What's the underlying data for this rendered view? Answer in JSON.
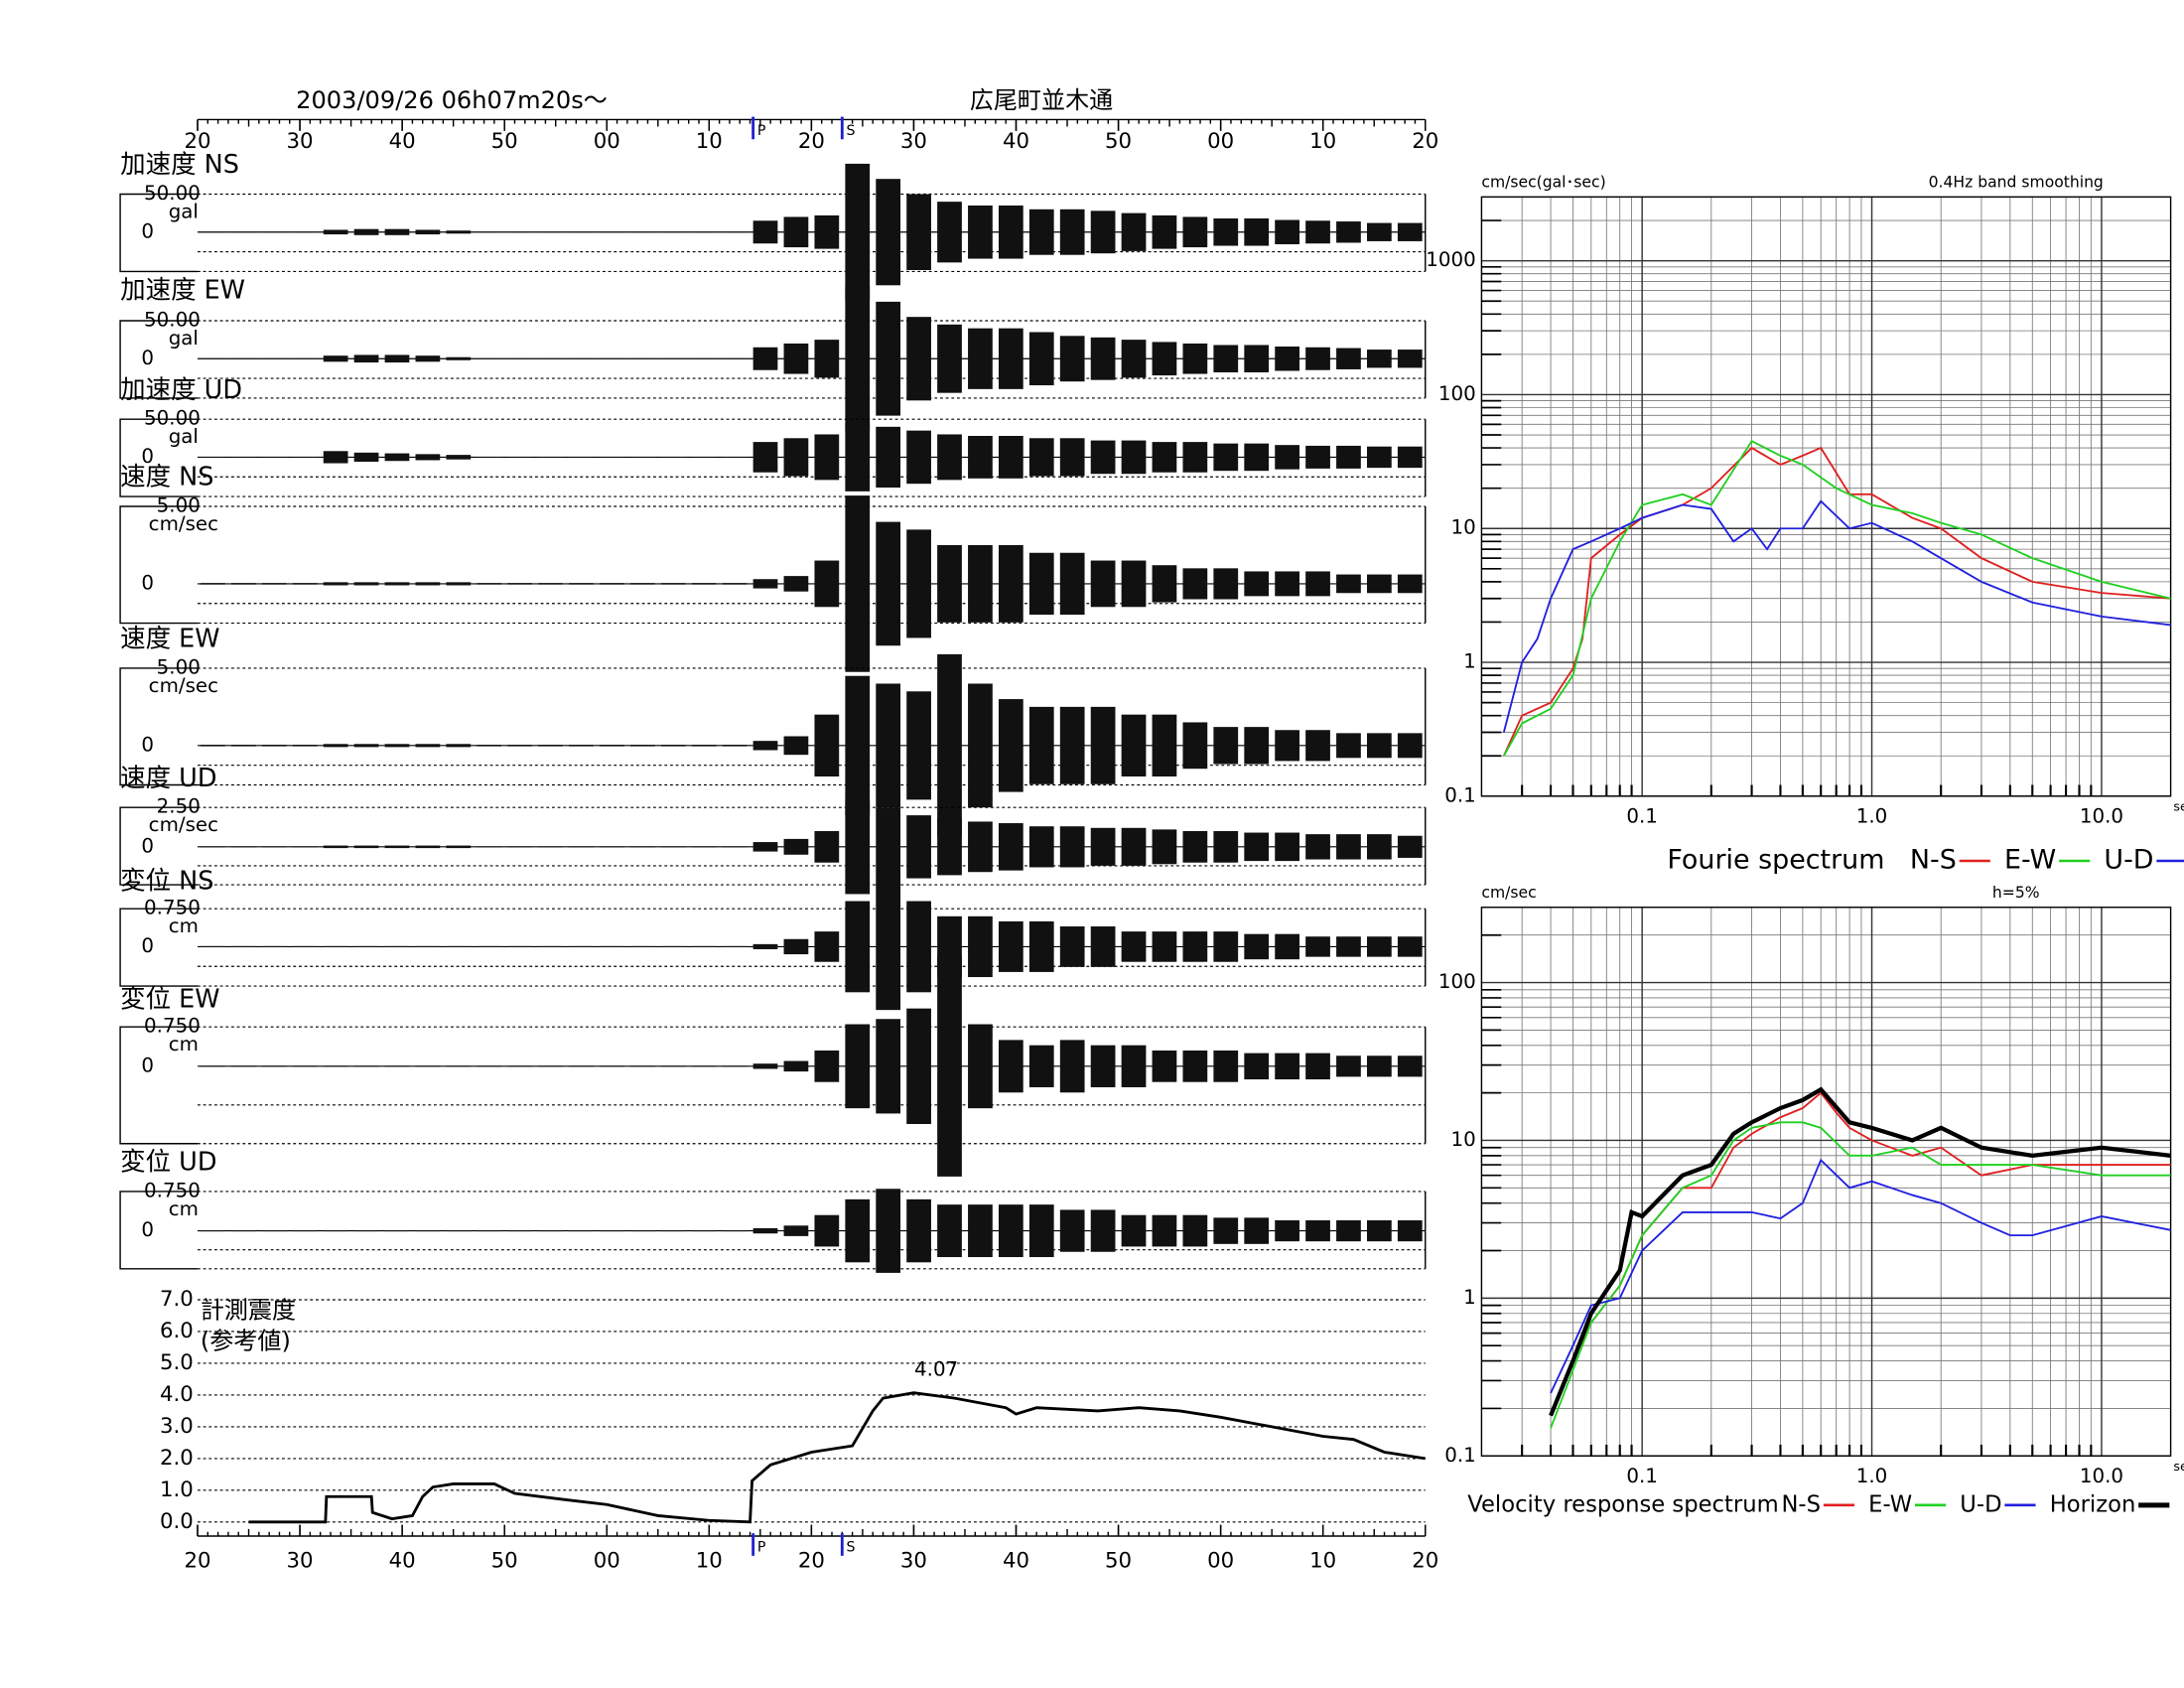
{
  "chart_data": [
    {
      "type": "waveform",
      "title": "2003/09/26  06h07m20s〜",
      "subtitle": "広尾町並木通",
      "x": [
        1.5,
        4.5,
        7.5,
        10.5,
        13.5,
        16.5,
        19.5,
        22.5,
        25.5,
        28.5,
        31.5,
        34.5,
        37.5,
        40.5,
        43.5,
        46.5,
        49.5,
        52.5,
        55.5,
        58.5,
        61.5,
        64.5,
        67.5,
        70.5,
        73.5,
        76.5,
        79.5,
        82.5,
        85.5,
        88.5,
        91.5,
        94.5,
        97.5,
        100.5,
        103.5,
        106.5,
        109.5,
        112.5,
        115.5,
        118.5
      ],
      "xlim": [
        0,
        120
      ],
      "xticks": [
        {
          "value": 0,
          "label": "20"
        },
        {
          "value": 10,
          "label": "30"
        },
        {
          "value": 20,
          "label": "40"
        },
        {
          "value": 30,
          "label": "50"
        },
        {
          "value": 40,
          "label": "00"
        },
        {
          "value": 50,
          "label": "10"
        },
        {
          "value": 60,
          "label": "20"
        },
        {
          "value": 70,
          "label": "30"
        },
        {
          "value": 80,
          "label": "40"
        },
        {
          "value": 90,
          "label": "50"
        },
        {
          "value": 100,
          "label": "00"
        },
        {
          "value": 110,
          "label": "10"
        },
        {
          "value": 120,
          "label": "20"
        }
      ],
      "phases": [
        {
          "label": "P",
          "x": 54.3
        },
        {
          "label": "S",
          "x": 63
        }
      ],
      "panels": [
        {
          "name": "加速度 NS",
          "unit": "gal",
          "yticks": [
            {
              "value": 50,
              "label": "50.00"
            },
            0
          ],
          "values": [
            0.5,
            0.5,
            0.5,
            0.5,
            3,
            4,
            4,
            3,
            2,
            0.5,
            0.5,
            0.5,
            0.5,
            0.5,
            0.5,
            0.5,
            0.5,
            0.5,
            15,
            20,
            22,
            90,
            70,
            50,
            40,
            35,
            35,
            30,
            30,
            28,
            25,
            22,
            20,
            18,
            18,
            16,
            15,
            14,
            12,
            12
          ]
        },
        {
          "name": "加速度 EW",
          "unit": "gal",
          "yticks": [
            {
              "value": 50,
              "label": "50.00"
            },
            0
          ],
          "values": [
            0.5,
            0.5,
            0.5,
            0.5,
            4,
            5,
            5,
            4,
            2,
            0.5,
            0.5,
            0.5,
            0.5,
            0.5,
            0.5,
            0.5,
            0.5,
            0.5,
            15,
            20,
            25,
            95,
            75,
            55,
            45,
            40,
            40,
            35,
            30,
            28,
            25,
            22,
            20,
            18,
            18,
            16,
            15,
            14,
            12,
            12
          ]
        },
        {
          "name": "加速度 UD",
          "unit": "gal",
          "yticks": [
            {
              "value": 50,
              "label": "50.00"
            },
            0
          ],
          "values": [
            0.5,
            0.5,
            0.5,
            0.5,
            8,
            6,
            5,
            4,
            3,
            0.5,
            0.5,
            0.5,
            0.5,
            0.5,
            0.5,
            0.5,
            0.5,
            0.5,
            20,
            25,
            30,
            45,
            40,
            35,
            30,
            28,
            28,
            25,
            25,
            22,
            22,
            20,
            20,
            18,
            18,
            16,
            15,
            15,
            14,
            14
          ]
        },
        {
          "name": "速度 NS",
          "unit": "cm/sec",
          "yticks": [
            {
              "value": 5,
              "label": "5.00"
            },
            0
          ],
          "values": [
            0.05,
            0.05,
            0.05,
            0.05,
            0.1,
            0.1,
            0.1,
            0.1,
            0.1,
            0.05,
            0.05,
            0.05,
            0.05,
            0.05,
            0.05,
            0.05,
            0.05,
            0.05,
            0.3,
            0.5,
            1.5,
            5.7,
            4,
            3.5,
            2.5,
            2.5,
            2.5,
            2,
            2,
            1.5,
            1.5,
            1.2,
            1,
            1,
            0.8,
            0.8,
            0.8,
            0.6,
            0.6,
            0.6
          ]
        },
        {
          "name": "速度 EW",
          "unit": "cm/sec",
          "yticks": [
            {
              "value": 5,
              "label": "5.00"
            },
            0
          ],
          "values": [
            0.05,
            0.05,
            0.05,
            0.05,
            0.1,
            0.1,
            0.1,
            0.1,
            0.1,
            0.05,
            0.05,
            0.05,
            0.05,
            0.05,
            0.05,
            0.05,
            0.05,
            0.05,
            0.3,
            0.6,
            2,
            4.5,
            4,
            3.5,
            5.9,
            4,
            3,
            2.5,
            2.5,
            2.5,
            2,
            2,
            1.5,
            1.2,
            1.2,
            1,
            1,
            0.8,
            0.8,
            0.8
          ]
        },
        {
          "name": "速度 UD",
          "unit": "cm/sec",
          "yticks": [
            {
              "value": 2.5,
              "label": "2.50"
            },
            0
          ],
          "values": [
            0.03,
            0.03,
            0.03,
            0.03,
            0.08,
            0.08,
            0.08,
            0.08,
            0.08,
            0.03,
            0.03,
            0.03,
            0.03,
            0.03,
            0.03,
            0.03,
            0.03,
            0.03,
            0.3,
            0.5,
            1,
            3,
            2.5,
            2,
            1.8,
            1.6,
            1.5,
            1.3,
            1.3,
            1.2,
            1.2,
            1.1,
            1,
            1,
            0.9,
            0.9,
            0.8,
            0.8,
            0.8,
            0.7
          ]
        },
        {
          "name": "変位 NS",
          "unit": "cm",
          "yticks": [
            {
              "value": 0.75,
              "label": "0.750"
            },
            0
          ],
          "values": [
            0.01,
            0.01,
            0.01,
            0.01,
            0.01,
            0.01,
            0.01,
            0.01,
            0.01,
            0.01,
            0.01,
            0.01,
            0.01,
            0.01,
            0.01,
            0.01,
            0.01,
            0.01,
            0.05,
            0.15,
            0.3,
            0.9,
            1.25,
            0.9,
            0.6,
            0.6,
            0.5,
            0.5,
            0.4,
            0.4,
            0.3,
            0.3,
            0.3,
            0.3,
            0.25,
            0.25,
            0.2,
            0.2,
            0.2,
            0.2
          ]
        },
        {
          "name": "変位 EW",
          "unit": "cm",
          "yticks": [
            {
              "value": 0.75,
              "label": "0.750"
            },
            0
          ],
          "values": [
            0.01,
            0.01,
            0.01,
            0.01,
            0.01,
            0.01,
            0.01,
            0.01,
            0.01,
            0.01,
            0.01,
            0.01,
            0.01,
            0.01,
            0.01,
            0.01,
            0.01,
            0.01,
            0.05,
            0.1,
            0.3,
            0.8,
            0.9,
            1.1,
            2.1,
            0.8,
            0.5,
            0.4,
            0.5,
            0.4,
            0.4,
            0.3,
            0.3,
            0.3,
            0.25,
            0.25,
            0.25,
            0.2,
            0.2,
            0.2
          ]
        },
        {
          "name": "変位 UD",
          "unit": "cm",
          "yticks": [
            {
              "value": 0.75,
              "label": "0.750"
            },
            0
          ],
          "values": [
            0.01,
            0.01,
            0.01,
            0.01,
            0.01,
            0.01,
            0.01,
            0.01,
            0.01,
            0.01,
            0.01,
            0.01,
            0.01,
            0.01,
            0.01,
            0.01,
            0.01,
            0.01,
            0.05,
            0.1,
            0.3,
            0.6,
            0.8,
            0.6,
            0.5,
            0.5,
            0.5,
            0.5,
            0.4,
            0.4,
            0.3,
            0.3,
            0.3,
            0.25,
            0.25,
            0.2,
            0.2,
            0.2,
            0.2,
            0.2
          ]
        }
      ]
    },
    {
      "type": "line",
      "title": "計測震度",
      "subtitle": "(参考値)",
      "x": [
        5,
        12.5,
        12.6,
        17,
        17.1,
        19,
        21,
        22,
        23,
        25,
        29,
        31,
        36,
        40,
        45,
        50,
        54,
        54.2,
        56,
        60,
        64,
        66,
        67,
        70,
        74,
        79,
        80,
        82,
        88,
        92,
        96,
        100,
        105,
        110,
        113,
        116,
        120
      ],
      "values": [
        0,
        0,
        0.8,
        0.8,
        0.3,
        0.1,
        0.2,
        0.8,
        1.1,
        1.2,
        1.2,
        0.9,
        0.7,
        0.55,
        0.2,
        0.05,
        0,
        1.3,
        1.8,
        2.2,
        2.4,
        3.5,
        3.9,
        4.07,
        3.9,
        3.6,
        3.4,
        3.6,
        3.5,
        3.6,
        3.5,
        3.3,
        3.0,
        2.7,
        2.6,
        2.2,
        2.0
      ],
      "value_labels": [
        null,
        null,
        null,
        null,
        null,
        null,
        null,
        null,
        null,
        null,
        null,
        null,
        null,
        null,
        null,
        null,
        null,
        null,
        null,
        null,
        null,
        null,
        null,
        "4.07",
        null,
        null,
        null,
        null,
        null,
        null,
        null,
        null,
        null,
        null,
        null,
        null,
        null
      ],
      "color": "#000000",
      "ylim": [
        0,
        7
      ],
      "yticks": [
        {
          "value": 0,
          "label": "0.0"
        },
        {
          "value": 1,
          "label": "1.0"
        },
        {
          "value": 2,
          "label": "2.0"
        },
        {
          "value": 3,
          "label": "3.0"
        },
        {
          "value": 4,
          "label": "4.0"
        },
        {
          "value": 5,
          "label": "5.0"
        },
        {
          "value": 6,
          "label": "6.0"
        },
        {
          "value": 7,
          "label": "7.0"
        }
      ]
    },
    {
      "type": "loglog",
      "title": "0.4Hz band smoothing",
      "y_label": "cm/sec(gal･sec)",
      "x_label": "sec",
      "legend_title": "Fourie spectrum",
      "xlim": [
        0.02,
        20
      ],
      "ylim": [
        0.1,
        3000
      ],
      "xticks": [
        0.1,
        {
          "value": 1,
          "label": "1.0"
        },
        {
          "value": 10,
          "label": "10.0"
        }
      ],
      "yticks": [
        0.1,
        1,
        10,
        100,
        1000
      ],
      "series": [
        {
          "name": "N-S",
          "color": "#e02020",
          "x": [
            0.025,
            0.03,
            0.04,
            0.05,
            0.055,
            0.06,
            0.08,
            0.1,
            0.15,
            0.2,
            0.3,
            0.4,
            0.5,
            0.6,
            0.8,
            1.0,
            1.5,
            2,
            3,
            5,
            10,
            20
          ],
          "values": [
            0.2,
            0.4,
            0.5,
            0.9,
            1.5,
            6,
            9,
            12,
            15,
            20,
            40,
            30,
            35,
            40,
            18,
            18,
            12,
            10,
            6,
            4,
            3.3,
            3
          ]
        },
        {
          "name": "E-W",
          "color": "#20d020",
          "x": [
            0.025,
            0.03,
            0.04,
            0.05,
            0.06,
            0.08,
            0.1,
            0.15,
            0.2,
            0.3,
            0.4,
            0.5,
            0.7,
            1.0,
            1.5,
            2,
            3,
            5,
            10,
            20
          ],
          "values": [
            0.2,
            0.35,
            0.45,
            0.8,
            3,
            8,
            15,
            18,
            15,
            45,
            35,
            30,
            20,
            15,
            13,
            11,
            9,
            6,
            4,
            3
          ]
        },
        {
          "name": "U-D",
          "color": "#2020e0",
          "x": [
            0.025,
            0.03,
            0.035,
            0.04,
            0.05,
            0.06,
            0.08,
            0.1,
            0.15,
            0.2,
            0.25,
            0.3,
            0.35,
            0.4,
            0.5,
            0.6,
            0.8,
            1.0,
            1.5,
            2,
            3,
            5,
            10,
            20
          ],
          "values": [
            0.3,
            1,
            1.5,
            3,
            7,
            8,
            10,
            12,
            15,
            14,
            8,
            10,
            7,
            10,
            10,
            16,
            10,
            11,
            8,
            6,
            4,
            2.8,
            2.2,
            1.9
          ]
        }
      ]
    },
    {
      "type": "loglog",
      "title": "h=5%",
      "y_label": "cm/sec",
      "x_label": "sec",
      "legend_title": "Velocity response spectrum",
      "xlim": [
        0.02,
        20
      ],
      "ylim": [
        0.1,
        300
      ],
      "xticks": [
        0.1,
        {
          "value": 1,
          "label": "1.0"
        },
        {
          "value": 10,
          "label": "10.0"
        }
      ],
      "yticks": [
        0.1,
        1,
        10,
        100
      ],
      "series": [
        {
          "name": "N-S",
          "color": "#e02020",
          "x": [
            0.04,
            0.05,
            0.06,
            0.08,
            0.1,
            0.15,
            0.2,
            0.25,
            0.3,
            0.4,
            0.5,
            0.6,
            0.7,
            0.8,
            1,
            1.5,
            2,
            3,
            5,
            10,
            20
          ],
          "values": [
            0.18,
            0.4,
            0.7,
            1.2,
            2.5,
            5,
            5,
            9,
            11,
            14,
            16,
            20,
            15,
            12,
            10,
            8,
            9,
            6,
            7,
            7,
            7
          ]
        },
        {
          "name": "E-W",
          "color": "#20d020",
          "x": [
            0.04,
            0.05,
            0.06,
            0.08,
            0.1,
            0.15,
            0.2,
            0.25,
            0.3,
            0.4,
            0.5,
            0.6,
            0.8,
            1,
            1.5,
            2,
            3,
            5,
            10,
            20
          ],
          "values": [
            0.15,
            0.35,
            0.7,
            1.2,
            2.5,
            5,
            6,
            10,
            12,
            13,
            13,
            12,
            8,
            8,
            9,
            7,
            7,
            7,
            6,
            6
          ]
        },
        {
          "name": "U-D",
          "color": "#2020e0",
          "x": [
            0.04,
            0.05,
            0.06,
            0.08,
            0.1,
            0.15,
            0.2,
            0.3,
            0.4,
            0.5,
            0.6,
            0.8,
            1,
            1.5,
            2,
            3,
            4,
            5,
            10,
            20
          ],
          "values": [
            0.25,
            0.5,
            0.9,
            1,
            2,
            3.5,
            3.5,
            3.5,
            3.2,
            4,
            7.5,
            5,
            5.5,
            4.5,
            4,
            3,
            2.5,
            2.5,
            3.3,
            2.7
          ]
        },
        {
          "name": "Horizon",
          "color": "#000000",
          "width": 3,
          "x": [
            0.04,
            0.05,
            0.06,
            0.08,
            0.09,
            0.1,
            0.15,
            0.2,
            0.25,
            0.3,
            0.4,
            0.5,
            0.6,
            0.8,
            1,
            1.5,
            2,
            3,
            5,
            10,
            20
          ],
          "values": [
            0.18,
            0.4,
            0.8,
            1.5,
            3.5,
            3.3,
            6,
            7,
            11,
            13,
            16,
            18,
            21,
            13,
            12,
            10,
            12,
            9,
            8,
            9,
            8
          ]
        }
      ]
    }
  ]
}
